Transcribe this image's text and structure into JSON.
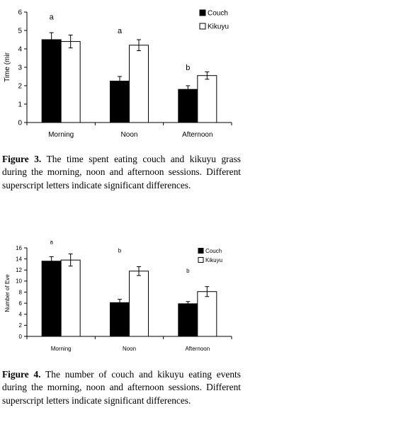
{
  "chart_data": [
    {
      "type": "bar",
      "categories": [
        "Morning",
        "Noon",
        "Afternoon"
      ],
      "ylabel": "Time (mir",
      "ylim": [
        0,
        6
      ],
      "yticks": [
        "0",
        "1",
        "2",
        "3",
        "4",
        "5",
        "6"
      ],
      "grid": false,
      "legend_position": "top-right",
      "series": [
        {
          "name": "Couch",
          "values": [
            4.5,
            2.25,
            1.8
          ],
          "errors": [
            0.38,
            0.25,
            0.2
          ],
          "color": "#000000"
        },
        {
          "name": "Kikuyu",
          "values": [
            4.4,
            4.2,
            2.55
          ],
          "errors": [
            0.35,
            0.3,
            0.2
          ],
          "color": "#ffffff"
        }
      ],
      "annotations": [
        {
          "text": "a",
          "category": "Morning",
          "y": 5.6
        },
        {
          "text": "a",
          "category": "Noon",
          "y": 4.85
        },
        {
          "text": "b",
          "category": "Afternoon",
          "y": 2.85
        }
      ]
    },
    {
      "type": "bar",
      "categories": [
        "Morning",
        "Noon",
        "Afternoon"
      ],
      "ylabel": "Number of Eve",
      "ylim": [
        0,
        16
      ],
      "yticks": [
        "0",
        "2",
        "4",
        "6",
        "8",
        "10",
        "12",
        "14",
        "16"
      ],
      "grid": false,
      "legend_position": "top-right",
      "series": [
        {
          "name": "Couch",
          "values": [
            13.6,
            6.1,
            5.9
          ],
          "errors": [
            0.8,
            0.6,
            0.4
          ],
          "color": "#000000"
        },
        {
          "name": "Kikuyu",
          "values": [
            13.8,
            11.8,
            8.1
          ],
          "errors": [
            1.1,
            0.8,
            0.9
          ],
          "color": "#ffffff"
        }
      ],
      "annotations": [
        {
          "text": "a",
          "category": "Morning",
          "y": 16.7
        },
        {
          "text": "b",
          "category": "Noon",
          "y": 15.2
        },
        {
          "text": "b",
          "category": "Afternoon",
          "y": 11.5
        }
      ]
    }
  ],
  "captions": [
    {
      "label": "Figure 3.",
      "text": " The time spent eating couch and kikuyu grass during the morning, noon and afternoon sessions. Different superscript letters indicate significant differences."
    },
    {
      "label": "Figure 4.",
      "text": " The number of couch and kikuyu eating events during the morning, noon and afternoon sessions. Different superscript letters indicate significant differences."
    }
  ]
}
